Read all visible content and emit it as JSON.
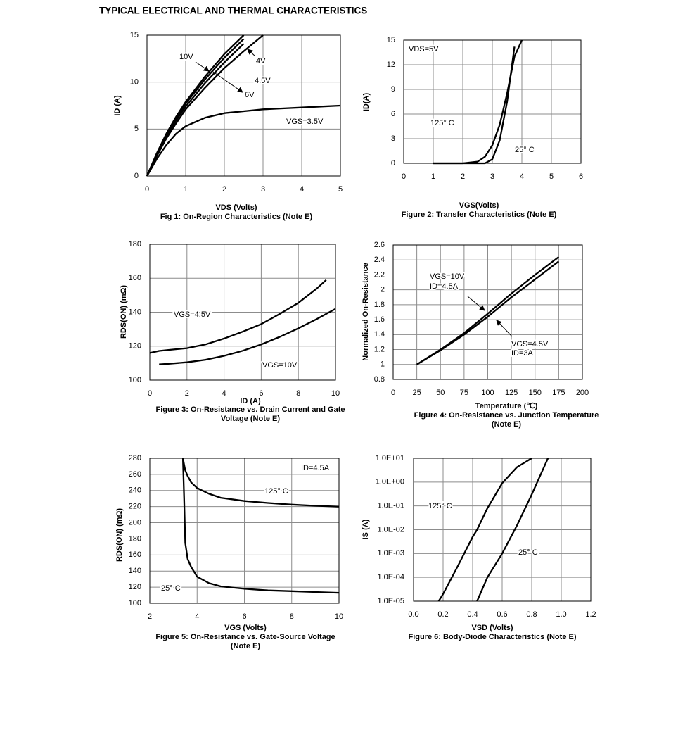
{
  "title": "TYPICAL ELECTRICAL AND THERMAL CHARACTERISTICS",
  "chart_data": [
    {
      "type": "line",
      "title": [
        "Fig 1: On-Region Characteristics (Note E)"
      ],
      "xlabel": "VDS (Volts)",
      "ylabel": "ID (A)",
      "x": [
        0,
        0.25,
        0.5,
        0.75,
        1,
        1.5,
        2,
        2.5,
        3,
        3.5,
        4,
        4.5,
        5
      ],
      "series": [
        {
          "color": "#000000",
          "values": [
            0,
            2.4,
            4.5,
            6.3,
            7.9,
            10.6,
            13.0,
            15.0,
            null,
            null,
            null,
            null,
            null
          ]
        },
        {
          "color": "#000000",
          "values": [
            0,
            2.3,
            4.3,
            6.1,
            7.7,
            10.3,
            12.6,
            14.6,
            null,
            null,
            null,
            null,
            null
          ]
        },
        {
          "color": "#000000",
          "values": [
            0,
            2.2,
            4.2,
            5.9,
            7.4,
            9.9,
            12.1,
            14.1,
            null,
            null,
            null,
            null,
            null
          ]
        },
        {
          "color": "#000000",
          "values": [
            0,
            2.1,
            4.0,
            5.6,
            7.1,
            9.4,
            11.5,
            13.3,
            15.0,
            null,
            null,
            null,
            null
          ]
        },
        {
          "color": "#000000",
          "values": [
            0,
            1.8,
            3.3,
            4.5,
            5.3,
            6.2,
            6.7,
            6.9,
            7.1,
            7.2,
            7.3,
            7.4,
            7.5
          ]
        }
      ],
      "annotations": [
        "10V",
        "4V",
        "4.5V",
        "6V",
        "VGS=3.5V"
      ],
      "xlim": [
        0,
        5
      ],
      "xticks": [
        0,
        1,
        2,
        3,
        4,
        5
      ],
      "ylim": [
        0,
        15
      ],
      "yticks": [
        0,
        5,
        10,
        15
      ],
      "grid": true
    },
    {
      "type": "line",
      "title": [
        "Figure 2: Transfer Characteristics (Note E)"
      ],
      "xlabel": "VGS(Volts)",
      "ylabel": "ID(A)",
      "x": [
        1,
        2,
        2.5,
        2.75,
        3,
        3.25,
        3.5,
        3.75,
        4
      ],
      "series": [
        {
          "color": "#000000",
          "values": [
            0,
            0,
            0.2,
            0.8,
            2.2,
            4.7,
            8.5,
            13.0,
            15.0
          ]
        },
        {
          "color": "#000000",
          "values": [
            0,
            0,
            0,
            0,
            0.5,
            2.8,
            7.5,
            14.2,
            null
          ]
        }
      ],
      "annotations": [
        "VDS=5V",
        "125° C",
        "25° C"
      ],
      "xlim": [
        0,
        6
      ],
      "xticks": [
        0,
        1,
        2,
        3,
        4,
        5,
        6
      ],
      "ylim": [
        0,
        15
      ],
      "yticks": [
        0,
        3,
        6,
        9,
        12,
        15
      ],
      "grid": true
    },
    {
      "type": "line",
      "title": [
        "Figure 3: On-Resistance vs. Drain Current and Gate",
        "Voltage (Note E)"
      ],
      "xlabel": "ID (A)",
      "ylabel": "RDS(ON) (mΩ)",
      "x": [
        0,
        0.5,
        1,
        2,
        3,
        4,
        5,
        6,
        7,
        8,
        9,
        9.5,
        10
      ],
      "series": [
        {
          "color": "#000000",
          "values": [
            116,
            117.2,
            117.8,
            118.8,
            121,
            124.5,
            128.5,
            133,
            139,
            145.5,
            154,
            159,
            null
          ]
        },
        {
          "color": "#000000",
          "values": [
            null,
            109.3,
            109.6,
            110.5,
            112,
            114.3,
            117.3,
            121,
            125.5,
            130.5,
            136,
            139,
            142
          ]
        }
      ],
      "annotations": [
        "VGS=4.5V",
        "VGS=10V"
      ],
      "xlim": [
        0,
        10
      ],
      "xticks": [
        0,
        2,
        4,
        6,
        8,
        10
      ],
      "ylim": [
        100,
        180
      ],
      "yticks": [
        100,
        120,
        140,
        160,
        180
      ],
      "grid": true
    },
    {
      "type": "line",
      "title": [
        "Figure 4: On-Resistance vs. Junction Temperature",
        "(Note E)"
      ],
      "xlabel": "Temperature (℃)",
      "ylabel": "Normalized On-Resistance",
      "x": [
        25,
        50,
        75,
        100,
        125,
        150,
        175
      ],
      "series": [
        {
          "color": "#000000",
          "values": [
            1.0,
            1.2,
            1.42,
            1.68,
            1.95,
            2.2,
            2.44
          ]
        },
        {
          "color": "#000000",
          "values": [
            1.0,
            1.19,
            1.4,
            1.64,
            1.9,
            2.14,
            2.38
          ]
        }
      ],
      "annotations": [
        "VGS=10V",
        "ID=4.5A",
        "VGS=4.5V",
        "ID=3A"
      ],
      "xlim": [
        0,
        200
      ],
      "xticks": [
        0,
        25,
        50,
        75,
        100,
        125,
        150,
        175,
        200
      ],
      "ylim": [
        0.8,
        2.6
      ],
      "yticks": [
        0.8,
        1,
        1.2,
        1.4,
        1.6,
        1.8,
        2,
        2.2,
        2.4,
        2.6
      ],
      "grid": true
    },
    {
      "type": "line",
      "title": [
        "Figure 5: On-Resistance vs. Gate-Source Voltage",
        "(Note E)"
      ],
      "xlabel": "VGS (Volts)",
      "ylabel": "RDS(ON) (mΩ)",
      "x": [
        3.4,
        3.45,
        3.5,
        3.6,
        3.75,
        4,
        4.5,
        5,
        6,
        7,
        8,
        9,
        10
      ],
      "series": [
        {
          "color": "#000000",
          "values": [
            280,
            272,
            265,
            258,
            250,
            243,
            236,
            231,
            227,
            224.5,
            222.5,
            221,
            220
          ]
        },
        {
          "color": "#000000",
          "values": [
            280,
            230,
            175,
            155,
            145,
            133,
            125,
            121,
            118,
            116,
            115,
            114,
            113
          ]
        }
      ],
      "annotations": [
        "ID=4.5A",
        "125° C",
        "25° C"
      ],
      "xlim": [
        2,
        10
      ],
      "xticks": [
        2,
        4,
        6,
        8,
        10
      ],
      "ylim": [
        100,
        280
      ],
      "yticks": [
        100,
        120,
        140,
        160,
        180,
        200,
        220,
        240,
        260,
        280
      ],
      "grid": true
    },
    {
      "type": "line",
      "title": [
        "Figure 6: Body-Diode Characteristics (Note E)"
      ],
      "xlabel": "VSD (Volts)",
      "ylabel": "IS (A)",
      "x": [
        0.17,
        0.2,
        0.3,
        0.4,
        0.43,
        0.5,
        0.6,
        0.7,
        0.8,
        0.91
      ],
      "series": [
        {
          "color": "#000000",
          "values": [
            1e-05,
            2e-05,
            0.0003,
            0.005,
            0.01,
            0.08,
            0.9,
            4.2,
            10,
            null
          ]
        },
        {
          "color": "#000000",
          "values": [
            null,
            null,
            null,
            null,
            1e-05,
            0.0001,
            0.001,
            0.015,
            0.3,
            10
          ]
        }
      ],
      "annotations": [
        "125° C",
        "25° C"
      ],
      "xlim": [
        0,
        1.2
      ],
      "xticks": [
        {
          "value": 0,
          "label": "0.0"
        },
        0.2,
        0.4,
        0.6,
        0.8,
        {
          "value": 1,
          "label": "1.0"
        },
        1.2
      ],
      "ylim": [
        1e-05,
        10
      ],
      "yscale": "log",
      "yticks": [
        {
          "value": 1e-05,
          "label": "1.0E-05"
        },
        {
          "value": 0.0001,
          "label": "1.0E-04"
        },
        {
          "value": 0.001,
          "label": "1.0E-03"
        },
        {
          "value": 0.01,
          "label": "1.0E-02"
        },
        {
          "value": 0.1,
          "label": "1.0E-01"
        },
        {
          "value": 1,
          "label": "1.0E+00"
        },
        {
          "value": 10,
          "label": "1.0E+01"
        }
      ],
      "grid": true
    }
  ]
}
